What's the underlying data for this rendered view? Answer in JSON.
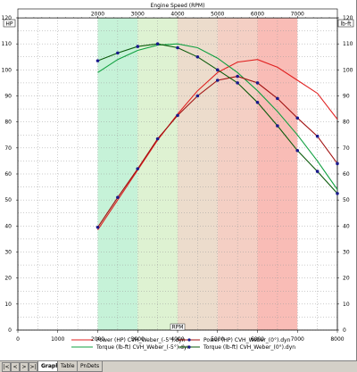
{
  "chart_data": {
    "type": "line",
    "top_axis_title": "Engine Speed (RPM)",
    "top_ticks": [
      "2000",
      "3000",
      "4000",
      "5000",
      "6000",
      "7000"
    ],
    "x_label": "RPM",
    "x_ticks": [
      "0",
      "1000",
      "2000",
      "3000",
      "4000",
      "5000",
      "6000",
      "7000",
      "8000"
    ],
    "xlim": [
      0,
      8000
    ],
    "left_unit": "HP",
    "right_unit": "lb-ft",
    "y_ticks": [
      "0",
      "10",
      "20",
      "30",
      "40",
      "50",
      "60",
      "70",
      "80",
      "90",
      "100",
      "110",
      "120"
    ],
    "ylim": [
      0,
      120
    ],
    "bands": [
      {
        "from": 2000,
        "to": 3000,
        "color": "#c6f2d8"
      },
      {
        "from": 3000,
        "to": 4000,
        "color": "#def2d2"
      },
      {
        "from": 4000,
        "to": 5000,
        "color": "#ecdccc"
      },
      {
        "from": 5000,
        "to": 6000,
        "color": "#f4cfc4"
      },
      {
        "from": 6000,
        "to": 7000,
        "color": "#f9bcb6"
      }
    ],
    "series": [
      {
        "name": "Power (HP) CVH_Weber_(-5°).dyn",
        "color": "#e02020",
        "markers": false,
        "x": [
          2000,
          2500,
          3000,
          3500,
          4000,
          4500,
          5000,
          5500,
          6000,
          6500,
          7000,
          7500,
          8000
        ],
        "y": [
          38.5,
          50,
          61.5,
          73,
          83,
          92,
          99,
          103,
          104,
          101,
          96,
          91,
          81
        ]
      },
      {
        "name": "Torque (lb-ft) CVH_Weber_(-5°).dyn",
        "color": "#10a040",
        "markers": false,
        "x": [
          2000,
          2500,
          3000,
          3500,
          4000,
          4500,
          5000,
          5500,
          6000,
          6500,
          7000,
          7500,
          8000
        ],
        "y": [
          99,
          104,
          107.5,
          109.5,
          110,
          108.5,
          104.5,
          99,
          92,
          84,
          75,
          65,
          54
        ]
      },
      {
        "name": "Power (HP) CVH_Weber_(0°).dyn",
        "color": "#a01010",
        "markers": true,
        "x": [
          2000,
          2500,
          3000,
          3500,
          4000,
          4500,
          5000,
          5500,
          6000,
          6500,
          7000,
          7500,
          8000
        ],
        "y": [
          39.5,
          51,
          62,
          73.5,
          82.5,
          90,
          96,
          97.5,
          95,
          89,
          81.5,
          74.5,
          64
        ]
      },
      {
        "name": "Torque (lb-ft) CVH_Weber_(0°).dyn",
        "color": "#0a5a0a",
        "markers": true,
        "x": [
          2000,
          2500,
          3000,
          3500,
          4000,
          4500,
          5000,
          5500,
          6000,
          6500,
          7000,
          7500,
          8000
        ],
        "y": [
          103.5,
          106.5,
          109,
          110,
          108.5,
          105,
          100,
          95,
          87.5,
          78.5,
          69,
          61,
          52.5
        ]
      }
    ]
  },
  "corrected_series_note": "",
  "tabs": [
    "Graph",
    "Table",
    "PnDets"
  ],
  "nav_buttons": [
    "|<",
    "<",
    ">",
    ">|"
  ]
}
